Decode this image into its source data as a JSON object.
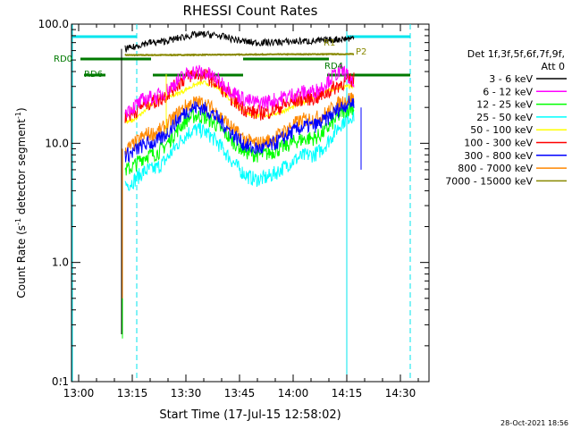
{
  "chart_data": {
    "type": "line",
    "title": "RHESSI Count Rates",
    "xlabel": "Start Time (17-Jul-15 12:58:02)",
    "ylabel": "Count Rate (s⁻¹ detector segment⁻¹)",
    "ylabel_main": "Count Rate (s",
    "ylabel_mid": " detector segment",
    "ylabel_end": ")",
    "ylabel_sup": "-1",
    "y_scale": "log",
    "ylim": [
      0.1,
      100
    ],
    "xlim": [
      "12:58",
      "14:38"
    ],
    "x_ticks": [
      "13:00",
      "13:15",
      "13:30",
      "13:45",
      "14:00",
      "14:15",
      "14:30"
    ],
    "y_ticks": [
      "0.1",
      "1.0",
      "10.0",
      "100.0"
    ],
    "legend_header": [
      "Det 1f,3f,5f,6f,7f,9f,",
      "Att 0"
    ],
    "legend_placement": "right",
    "timestamp": "28-Oct-2021 18:56",
    "series": [
      {
        "name": "3 - 6 keV",
        "color": "#000000",
        "x": [
          "13:13",
          "13:20",
          "13:35",
          "13:50",
          "14:05",
          "14:17"
        ],
        "values": [
          62,
          70,
          82,
          70,
          72,
          76
        ]
      },
      {
        "name": "6 - 12 keV",
        "color": "#ff00ff",
        "x": [
          "13:13",
          "13:20",
          "13:33",
          "13:50",
          "14:05",
          "14:14",
          "14:17"
        ],
        "values": [
          19,
          24,
          40,
          22,
          27,
          40,
          31
        ]
      },
      {
        "name": "12 - 25 keV",
        "color": "#00ff00",
        "x": [
          "13:13",
          "13:20",
          "13:33",
          "13:50",
          "14:05",
          "14:17"
        ],
        "values": [
          6,
          8,
          17,
          8,
          11,
          20
        ]
      },
      {
        "name": "25 - 50 keV",
        "color": "#00ffff",
        "x": [
          "13:13",
          "13:20",
          "13:33",
          "13:50",
          "14:05",
          "14:17"
        ],
        "values": [
          4.5,
          6,
          13,
          5,
          8,
          17
        ]
      },
      {
        "name": "50 - 100 keV",
        "color": "#ffff00",
        "x": [
          "13:13",
          "13:25",
          "13:35",
          "13:50",
          "14:17"
        ],
        "values": [
          15,
          25,
          32,
          17,
          30
        ]
      },
      {
        "name": "100 - 300 keV",
        "color": "#ff0000",
        "x": [
          "13:13",
          "13:20",
          "13:33",
          "13:50",
          "14:05",
          "14:17"
        ],
        "values": [
          17,
          22,
          38,
          18,
          24,
          34
        ]
      },
      {
        "name": "300 - 800 keV",
        "color": "#0000ff",
        "x": [
          "13:13",
          "13:20",
          "13:33",
          "13:50",
          "14:05",
          "14:17"
        ],
        "values": [
          8,
          10,
          20,
          9,
          14,
          22
        ]
      },
      {
        "name": "800 - 7000 keV",
        "color": "#ff8800",
        "x": [
          "13:13",
          "13:20",
          "13:33",
          "13:50",
          "14:05",
          "14:17"
        ],
        "values": [
          9,
          12,
          22,
          10,
          16,
          24
        ]
      },
      {
        "name": "7000 - 15000 keV",
        "color": "#888800",
        "x": [
          "13:13",
          "14:17"
        ],
        "values": [
          55,
          56
        ]
      }
    ],
    "annotations": [
      {
        "text": "RD0",
        "x": "12:58",
        "y": 50
      },
      {
        "text": "RD6",
        "x": "13:00",
        "y": 36
      },
      {
        "text": "RD4",
        "x": "14:09",
        "y": 40
      },
      {
        "text": "R1",
        "x": "14:06",
        "y": 60
      },
      {
        "text": "P2",
        "x": "14:17",
        "y": 55
      }
    ]
  }
}
